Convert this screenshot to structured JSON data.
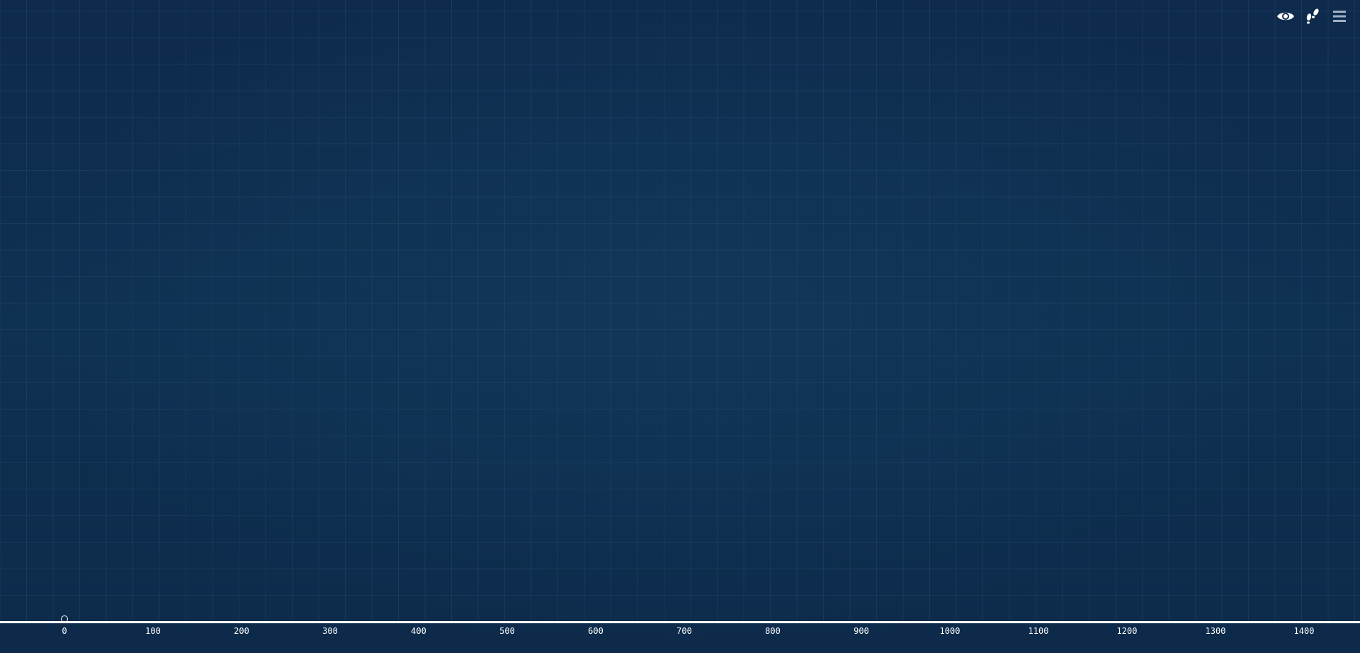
{
  "canvas": {
    "background": "#0d2a4a",
    "grid_color": "#2a5272",
    "ruler_color": "#ffffff"
  },
  "toolbar": {
    "buttons": [
      {
        "icon": "eye-icon",
        "name": "view-toggle-button"
      },
      {
        "icon": "footsteps-icon",
        "name": "steps-button"
      },
      {
        "icon": "menu-icon",
        "name": "menu-button"
      }
    ]
  },
  "ruler": {
    "unit_max": 1400,
    "tick_labels": [
      "0",
      "100",
      "200",
      "300",
      "400",
      "500",
      "600",
      "700",
      "800",
      "900",
      "1000",
      "1100",
      "1200",
      "1300",
      "1400"
    ]
  },
  "origin_marker": {
    "position_units": 0
  }
}
